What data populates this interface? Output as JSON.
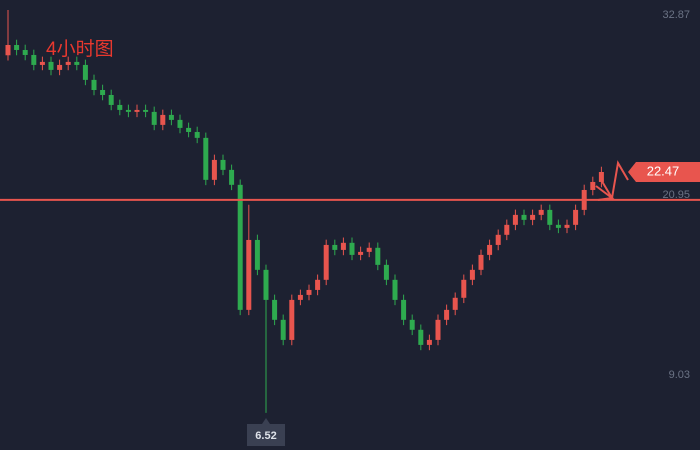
{
  "chart_data": {
    "type": "candlestick",
    "title": "4小时图",
    "ylim": [
      4.06,
      33.86
    ],
    "yticks": [
      32.87,
      20.95,
      9.03
    ],
    "up_color": "#e8554e",
    "down_color": "#2eaa4f",
    "level_line": {
      "value": 20.62,
      "color": "#e8554e"
    },
    "series": {
      "open": [
        30.2,
        30.88,
        30.55,
        30.22,
        29.56,
        29.76,
        29.23,
        29.56,
        29.76,
        29.56,
        28.57,
        27.9,
        27.57,
        26.91,
        26.58,
        26.45,
        26.58,
        26.45,
        25.59,
        26.25,
        25.92,
        25.39,
        25.12,
        24.73,
        21.95,
        23.27,
        22.61,
        21.62,
        13.34,
        17.97,
        15.99,
        14.0,
        12.68,
        11.35,
        14.0,
        14.33,
        14.66,
        15.33,
        17.64,
        17.31,
        17.78,
        16.98,
        17.18,
        17.45,
        16.32,
        15.33,
        14.0,
        12.68,
        12.02,
        11.02,
        11.35,
        12.68,
        13.34,
        14.14,
        15.33,
        15.99,
        16.98,
        17.64,
        18.31,
        18.97,
        19.63,
        19.3,
        19.63,
        19.96,
        18.97,
        18.77,
        18.97,
        19.96,
        21.28,
        21.81
      ],
      "high": [
        33.2,
        31.23,
        30.9,
        30.57,
        30.11,
        30.11,
        29.91,
        30.11,
        30.11,
        29.91,
        28.92,
        28.25,
        27.92,
        27.26,
        26.93,
        26.93,
        26.93,
        26.8,
        26.6,
        26.6,
        26.27,
        25.74,
        25.47,
        25.08,
        23.62,
        23.62,
        22.96,
        21.97,
        20.3,
        18.32,
        16.34,
        14.35,
        13.03,
        14.35,
        14.68,
        15.01,
        15.68,
        17.99,
        17.99,
        18.13,
        18.13,
        17.53,
        17.8,
        17.8,
        16.67,
        15.68,
        14.35,
        13.03,
        12.37,
        11.7,
        13.03,
        13.69,
        14.49,
        15.68,
        16.34,
        17.33,
        17.99,
        18.66,
        19.32,
        19.98,
        19.98,
        19.98,
        20.31,
        20.31,
        19.32,
        19.32,
        20.31,
        21.63,
        22.16,
        22.82
      ],
      "low": [
        29.85,
        30.2,
        29.87,
        29.21,
        29.21,
        28.88,
        28.88,
        29.21,
        29.21,
        28.22,
        27.55,
        27.22,
        26.56,
        26.23,
        26.1,
        26.1,
        26.1,
        25.24,
        25.24,
        25.57,
        25.04,
        24.77,
        24.38,
        21.6,
        21.6,
        22.26,
        21.27,
        12.99,
        12.99,
        15.64,
        6.52,
        12.33,
        11.0,
        11.0,
        13.65,
        13.98,
        14.31,
        14.98,
        16.96,
        16.96,
        16.63,
        16.63,
        16.83,
        15.97,
        14.98,
        13.65,
        12.33,
        11.67,
        10.67,
        10.67,
        11.0,
        12.33,
        12.99,
        13.79,
        14.98,
        15.64,
        16.63,
        17.29,
        17.96,
        18.62,
        18.95,
        18.95,
        19.28,
        18.62,
        18.42,
        18.42,
        18.62,
        19.61,
        20.93,
        21.46
      ],
      "close": [
        30.88,
        30.55,
        30.22,
        29.56,
        29.76,
        29.23,
        29.56,
        29.76,
        29.56,
        28.57,
        27.9,
        27.57,
        26.91,
        26.58,
        26.45,
        26.58,
        26.45,
        25.59,
        26.25,
        25.92,
        25.39,
        25.12,
        24.73,
        21.95,
        23.27,
        22.61,
        21.62,
        13.34,
        17.97,
        15.99,
        14.0,
        12.68,
        11.35,
        14.0,
        14.33,
        14.66,
        15.33,
        17.64,
        17.31,
        17.78,
        16.98,
        17.18,
        17.45,
        16.32,
        15.33,
        14.0,
        12.68,
        12.02,
        11.02,
        11.35,
        12.68,
        13.34,
        14.14,
        15.33,
        15.99,
        16.98,
        17.64,
        18.31,
        18.97,
        19.63,
        19.3,
        19.63,
        19.96,
        18.97,
        18.77,
        18.97,
        19.96,
        21.28,
        21.81,
        22.47
      ]
    }
  }
}
